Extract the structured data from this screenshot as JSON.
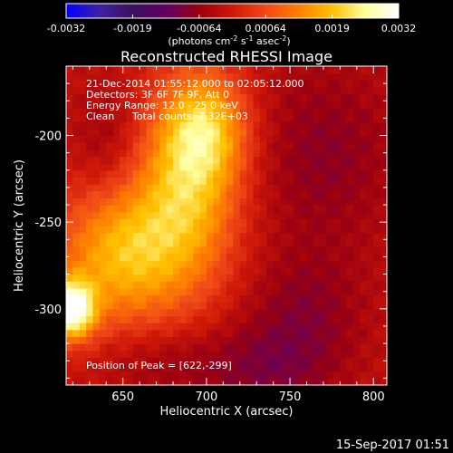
{
  "colorbar": {
    "ticks": [
      "-0.0032",
      "-0.0019",
      "-0.00064",
      "0.00064",
      "0.0019",
      "0.0032"
    ],
    "units_main": "(photons cm",
    "units_exp1": "-2",
    "units_mid": " s",
    "units_exp2": "-1",
    "units_end": " asec",
    "units_exp3": "-2",
    "units_close": ")",
    "stops": [
      "#0000ff",
      "#4020a0",
      "#3a1060",
      "#600060",
      "#9a0010",
      "#d01808",
      "#f04818",
      "#ff8000",
      "#ffc000",
      "#ffffa0",
      "#ffffff"
    ]
  },
  "chart_data": {
    "type": "heatmap",
    "title": "Reconstructed RHESSI Image",
    "xlabel": "Heliocentric X (arcsec)",
    "ylabel": "Heliocentric Y (arcsec)",
    "xlim": [
      616,
      808
    ],
    "ylim": [
      -344,
      -160
    ],
    "xticks": [
      650,
      700,
      750,
      800
    ],
    "yticks": [
      -200,
      -250,
      -300
    ],
    "color_range": [
      -0.0032,
      0.0032
    ],
    "peak": [
      622,
      -299
    ],
    "sources": [
      {
        "x": 619,
        "y": -300,
        "amp": 1.0,
        "sx": 10,
        "sy": 12
      },
      {
        "x": 650,
        "y": -268,
        "amp": 0.62,
        "sx": 28,
        "sy": 30
      },
      {
        "x": 690,
        "y": -228,
        "amp": 0.58,
        "sx": 22,
        "sy": 40
      },
      {
        "x": 700,
        "y": -195,
        "amp": 0.48,
        "sx": 18,
        "sy": 22
      },
      {
        "x": 735,
        "y": -335,
        "amp": -0.22,
        "sx": 30,
        "sy": 20
      },
      {
        "x": 770,
        "y": -210,
        "amp": -0.2,
        "sx": 35,
        "sy": 40
      },
      {
        "x": 670,
        "y": -330,
        "amp": -0.15,
        "sx": 25,
        "sy": 15
      },
      {
        "x": 640,
        "y": -205,
        "amp": -0.16,
        "sx": 15,
        "sy": 25
      },
      {
        "x": 760,
        "y": -300,
        "amp": -0.18,
        "sx": 25,
        "sy": 25
      }
    ]
  },
  "annotations": {
    "time": "21-Dec-2014 01:55:12.000 to 02:05:12.000",
    "detectors": "Detectors: 3F 6F 7F 9F, Att 0",
    "energy": "Energy Range: 12.0 - 25.0 keV",
    "clean_method": "Clean",
    "total_counts": "Total counts: 7.32E+03",
    "peak_position": "Position of Peak = [622,-299]"
  },
  "footer": {
    "timestamp": "15-Sep-2017 01:51"
  }
}
